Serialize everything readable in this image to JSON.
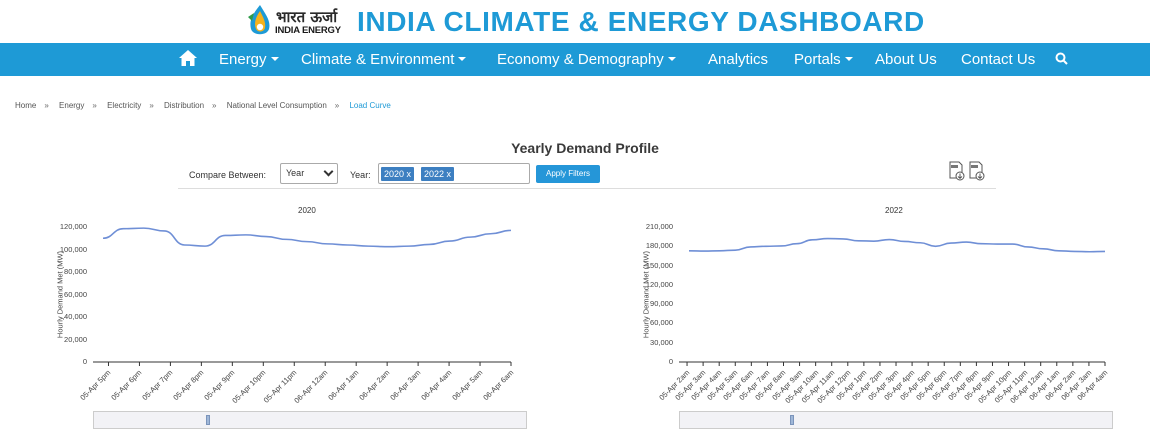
{
  "header": {
    "logo_line1": "भारत ऊर्जा",
    "logo_line2": "INDIA ENERGY",
    "title": "INDIA CLIMATE & ENERGY DASHBOARD"
  },
  "nav": {
    "home_icon": "home-icon",
    "items": [
      {
        "label": "Energy",
        "dropdown": true
      },
      {
        "label": "Climate & Environment",
        "dropdown": true
      },
      {
        "label": "Economy & Demography",
        "dropdown": true
      },
      {
        "label": "Analytics",
        "dropdown": false
      },
      {
        "label": "Portals",
        "dropdown": true
      },
      {
        "label": "About Us",
        "dropdown": false
      },
      {
        "label": "Contact Us",
        "dropdown": false
      }
    ],
    "search_icon": "search-icon"
  },
  "breadcrumb": [
    "Home",
    "Energy",
    "Electricity",
    "Distribution",
    "National Level Consumption",
    "Load Curve"
  ],
  "breadcrumb_sep": "»",
  "section_title": "Yearly Demand Profile",
  "filters": {
    "compare_label": "Compare Between:",
    "compare_value": "Year",
    "year_label": "Year:",
    "selected_years": [
      "2020 x",
      "2022 x"
    ],
    "apply_label": "Apply Filters",
    "download_icons": [
      "download-csv-icon",
      "download-xls-icon"
    ]
  },
  "colors": {
    "brand": "#1e9ad6",
    "line": "#6f8fd6",
    "tag": "#3d7fc1"
  },
  "chart_data": [
    {
      "type": "line",
      "title": "2020",
      "ylabel": "Hourly Demand Met (MW)",
      "ylim": [
        0,
        120000
      ],
      "yticks": [
        "120,000",
        "100,000",
        "80,000",
        "60,000",
        "40,000",
        "20,000",
        "0"
      ],
      "xticks": [
        "05-Apr 5pm",
        "05-Apr 6pm",
        "05-Apr 7pm",
        "05-Apr 8pm",
        "05-Apr 9pm",
        "05-Apr 10pm",
        "05-Apr 11pm",
        "06-Apr 12am",
        "06-Apr 1am",
        "06-Apr 2am",
        "06-Apr 3am",
        "06-Apr 4am",
        "06-Apr 5am",
        "06-Apr 6am"
      ],
      "series": [
        {
          "name": "2020",
          "values": [
            110000,
            118500,
            119000,
            116500,
            104000,
            103000,
            112500,
            113000,
            111500,
            109000,
            107000,
            105000,
            104000,
            103000,
            102500,
            103000,
            104500,
            107500,
            111000,
            114000,
            117000
          ]
        }
      ]
    },
    {
      "type": "line",
      "title": "2022",
      "ylabel": "Hourly Demand Met (MW)",
      "ylim": [
        0,
        210000
      ],
      "yticks": [
        "210,000",
        "180,000",
        "150,000",
        "120,000",
        "90,000",
        "60,000",
        "30,000",
        "0"
      ],
      "xticks": [
        "05-Apr 2am",
        "05-Apr 3am",
        "05-Apr 4am",
        "05-Apr 5am",
        "05-Apr 6am",
        "05-Apr 7am",
        "05-Apr 8am",
        "05-Apr 9am",
        "05-Apr 10am",
        "05-Apr 11am",
        "05-Apr 12pm",
        "05-Apr 1pm",
        "05-Apr 2pm",
        "05-Apr 3pm",
        "05-Apr 4pm",
        "05-Apr 5pm",
        "05-Apr 6pm",
        "05-Apr 7pm",
        "05-Apr 8pm",
        "05-Apr 9pm",
        "05-Apr 10pm",
        "05-Apr 11pm",
        "06-Apr 12am",
        "06-Apr 1am",
        "06-Apr 2am",
        "06-Apr 3am",
        "06-Apr 4am"
      ],
      "series": [
        {
          "name": "2022",
          "values": [
            173000,
            172500,
            173000,
            174000,
            179000,
            180000,
            180500,
            184000,
            190000,
            192000,
            191500,
            188500,
            188000,
            190500,
            187500,
            185500,
            180000,
            185000,
            186500,
            184000,
            183500,
            183500,
            179000,
            176000,
            173000,
            172000,
            171500,
            172000
          ]
        }
      ]
    }
  ]
}
